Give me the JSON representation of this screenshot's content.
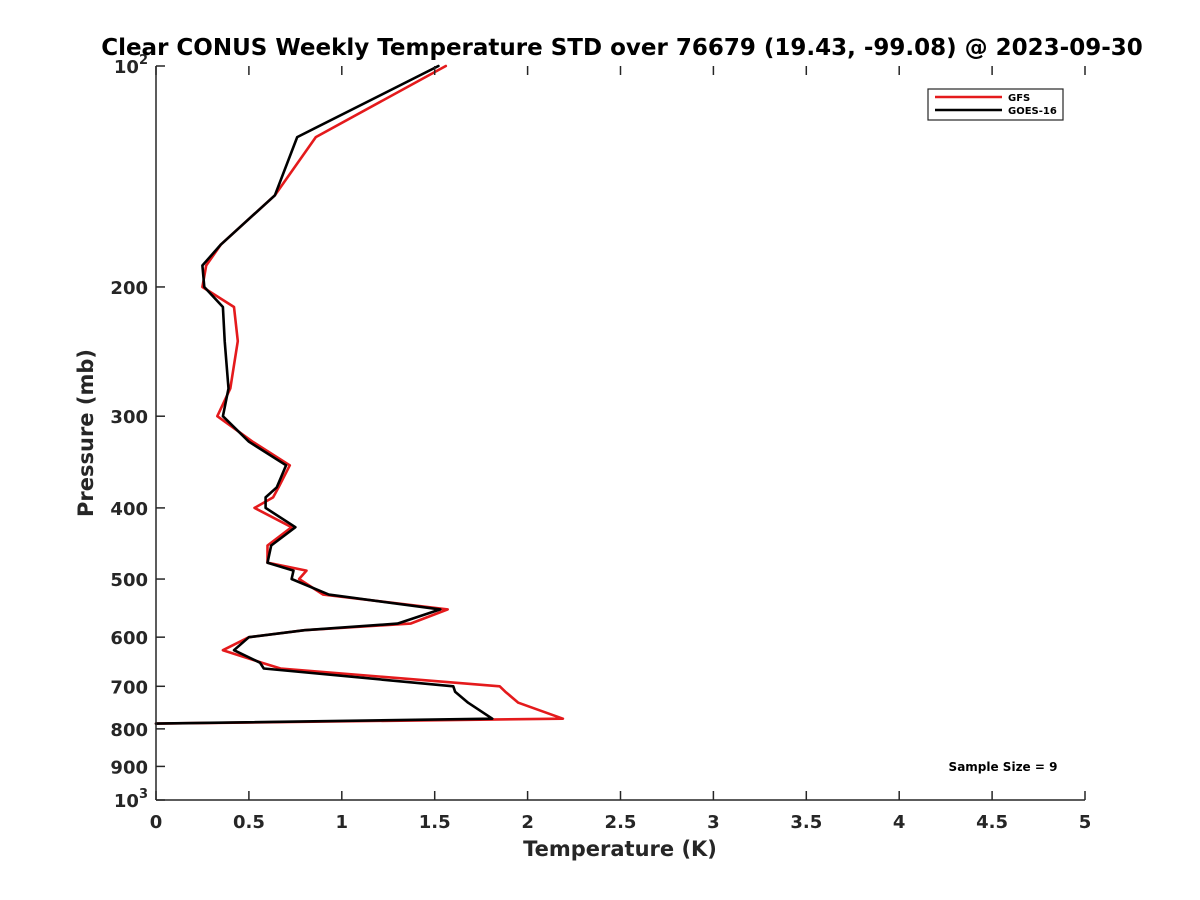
{
  "chart_data": {
    "type": "line",
    "title": "Clear CONUS Weekly Temperature STD over 76679 (19.43, -99.08) @ 2023-09-30",
    "xlabel": "Temperature (K)",
    "ylabel": "Pressure (mb)",
    "xlim": [
      0,
      5
    ],
    "ylim": [
      100,
      1000
    ],
    "y_scale": "log",
    "y_reversed": true,
    "x_ticks": [
      "0",
      "0.5",
      "1",
      "1.5",
      "2",
      "2.5",
      "3",
      "3.5",
      "4",
      "4.5",
      "5"
    ],
    "y_ticks": [
      {
        "value": 100,
        "base": "10",
        "exp": "2"
      },
      {
        "value": 200,
        "base": "200",
        "exp": ""
      },
      {
        "value": 300,
        "base": "300",
        "exp": ""
      },
      {
        "value": 400,
        "base": "400",
        "exp": ""
      },
      {
        "value": 500,
        "base": "500",
        "exp": ""
      },
      {
        "value": 600,
        "base": "600",
        "exp": ""
      },
      {
        "value": 700,
        "base": "700",
        "exp": ""
      },
      {
        "value": 800,
        "base": "800",
        "exp": ""
      },
      {
        "value": 900,
        "base": "900",
        "exp": ""
      },
      {
        "value": 1000,
        "base": "10",
        "exp": "3"
      }
    ],
    "grid": false,
    "legend_position": "top-right",
    "annotation": "Sample Size = 9",
    "series": [
      {
        "name": "GFS",
        "color": "#e41a1c",
        "points": [
          [
            1.56,
            100
          ],
          [
            0.86,
            125
          ],
          [
            0.64,
            150
          ],
          [
            0.35,
            175
          ],
          [
            0.27,
            187
          ],
          [
            0.25,
            200
          ],
          [
            0.42,
            213
          ],
          [
            0.44,
            237
          ],
          [
            0.4,
            275
          ],
          [
            0.33,
            300
          ],
          [
            0.52,
            325
          ],
          [
            0.72,
            350
          ],
          [
            0.66,
            375
          ],
          [
            0.63,
            387
          ],
          [
            0.53,
            400
          ],
          [
            0.73,
            425
          ],
          [
            0.6,
            450
          ],
          [
            0.6,
            475
          ],
          [
            0.81,
            487
          ],
          [
            0.77,
            500
          ],
          [
            0.9,
            525
          ],
          [
            1.57,
            550
          ],
          [
            1.37,
            575
          ],
          [
            0.8,
            587
          ],
          [
            0.5,
            600
          ],
          [
            0.36,
            625
          ],
          [
            0.57,
            650
          ],
          [
            0.67,
            662
          ],
          [
            1.85,
            700
          ],
          [
            1.88,
            712
          ],
          [
            1.95,
            737
          ],
          [
            2.19,
            775
          ],
          [
            0.0,
            787
          ]
        ]
      },
      {
        "name": "GOES-16",
        "color": "#000000",
        "points": [
          [
            1.52,
            100
          ],
          [
            0.76,
            125
          ],
          [
            0.64,
            150
          ],
          [
            0.35,
            175
          ],
          [
            0.25,
            187
          ],
          [
            0.26,
            200
          ],
          [
            0.36,
            213
          ],
          [
            0.37,
            237
          ],
          [
            0.39,
            275
          ],
          [
            0.36,
            300
          ],
          [
            0.5,
            325
          ],
          [
            0.7,
            350
          ],
          [
            0.65,
            375
          ],
          [
            0.59,
            387
          ],
          [
            0.59,
            400
          ],
          [
            0.75,
            425
          ],
          [
            0.62,
            450
          ],
          [
            0.6,
            475
          ],
          [
            0.74,
            487
          ],
          [
            0.73,
            500
          ],
          [
            0.93,
            525
          ],
          [
            1.53,
            550
          ],
          [
            1.3,
            575
          ],
          [
            0.8,
            587
          ],
          [
            0.5,
            600
          ],
          [
            0.42,
            625
          ],
          [
            0.56,
            650
          ],
          [
            0.58,
            662
          ],
          [
            1.6,
            700
          ],
          [
            1.61,
            712
          ],
          [
            1.68,
            737
          ],
          [
            1.81,
            775
          ],
          [
            0.0,
            787
          ]
        ]
      }
    ]
  }
}
